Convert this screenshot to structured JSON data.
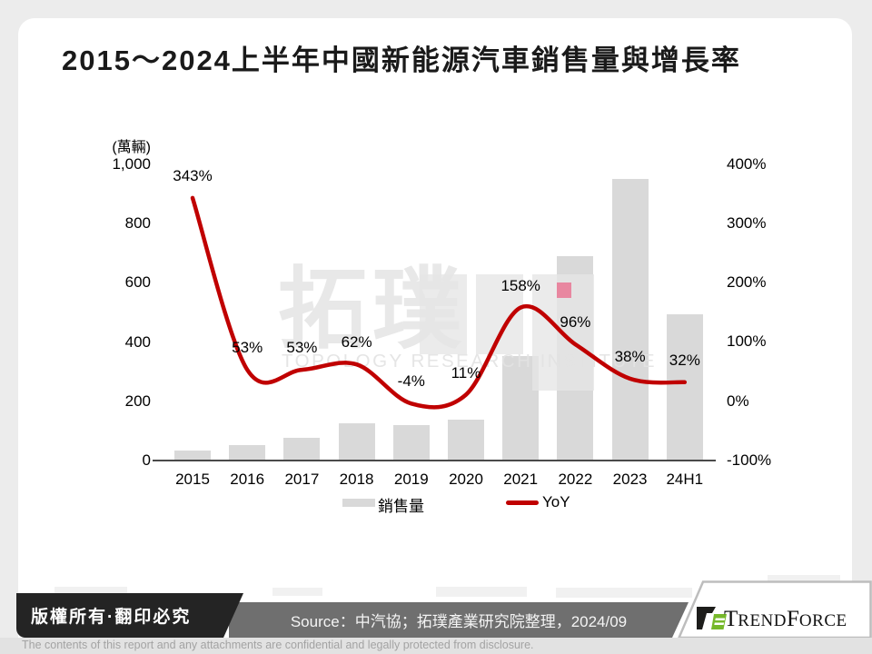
{
  "page": {
    "title": "2015～2024上半年中國新能源汽車銷售量與增長率"
  },
  "chart_data": {
    "type": "combo",
    "categories": [
      "2015",
      "2016",
      "2017",
      "2018",
      "2019",
      "2020",
      "2021",
      "2022",
      "2023",
      "24H1"
    ],
    "series": [
      {
        "name": "銷售量",
        "type": "bar",
        "unit": "萬輛",
        "values": [
          33,
          51,
          78,
          126,
          121,
          137,
          352,
          689,
          950,
          494
        ]
      },
      {
        "name": "YoY",
        "type": "line",
        "unit": "%",
        "values": [
          343,
          53,
          53,
          62,
          -4,
          11,
          158,
          96,
          38,
          32
        ],
        "labels": [
          "343%",
          "53%",
          "53%",
          "62%",
          "-4%",
          "11%",
          "158%",
          "96%",
          "38%",
          "32%"
        ]
      }
    ],
    "left_axis": {
      "unit": "(萬輛)",
      "tick_labels": [
        "1,000",
        "800",
        "600",
        "400",
        "200",
        "0"
      ],
      "tick_values": [
        1000,
        800,
        600,
        400,
        200,
        0
      ],
      "range": [
        0,
        1000
      ]
    },
    "right_axis": {
      "tick_labels": [
        "400%",
        "300%",
        "200%",
        "100%",
        "0%",
        "-100%"
      ],
      "tick_values": [
        400,
        300,
        200,
        100,
        0,
        -100
      ],
      "range": [
        -100,
        400
      ]
    },
    "legend": {
      "position": "bottom",
      "items": [
        "銷售量",
        "YoY"
      ]
    },
    "grid": false,
    "colors": {
      "bar": "#d9d9d9",
      "line": "#c00000",
      "marker": "#e887a0",
      "axis_line": "#4a4a4a"
    },
    "highlight_marker": {
      "category": "2022",
      "color": "#e887a0"
    }
  },
  "watermark": {
    "cjk": "拓璞",
    "caption": "TOPOLOGY RESEARCH INSTITUTE"
  },
  "footer": {
    "copyright": "版權所有·翻印必究",
    "source": "Source：中汽協；拓璞產業研究院整理，2024/09",
    "logo": {
      "t": "T",
      "rend": "REND",
      "f": "F",
      "orce": "ORCE"
    },
    "disclaimer": "The contents of this report and any attachments are confidential and legally protected from disclosure."
  }
}
